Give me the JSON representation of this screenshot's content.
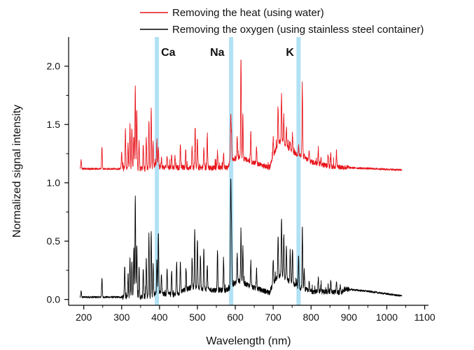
{
  "chart_data": {
    "type": "line",
    "title": "",
    "xlabel": "Wavelength (nm)",
    "ylabel": "Normalized signal intensity",
    "xlim": [
      160,
      1110
    ],
    "ylim": [
      -0.05,
      2.25
    ],
    "xticks": [
      200,
      300,
      400,
      500,
      600,
      700,
      800,
      900,
      1000,
      1100
    ],
    "xtick_labels": [
      "200",
      "300",
      "400",
      "500",
      "600",
      "700",
      "800",
      "900",
      "1000",
      "1100"
    ],
    "yticks": [
      0.0,
      0.5,
      1.0,
      1.5,
      2.0
    ],
    "ytick_labels": [
      "0.0",
      "0.5",
      "1.0",
      "1.5",
      "2.0"
    ],
    "grid": false,
    "legend_position": "top",
    "x_range": [
      190,
      1040
    ],
    "element_lines": [
      {
        "label": "Ca",
        "x": 393
      },
      {
        "label": "Na",
        "x": 589
      },
      {
        "label": "K",
        "x": 767
      }
    ],
    "series": [
      {
        "name": "Removing the heat (using water)",
        "color": "#e8141b",
        "baseline": [
          [
            190,
            1.12
          ],
          [
            380,
            1.12
          ],
          [
            392,
            1.17
          ],
          [
            398,
            1.14
          ],
          [
            420,
            1.13
          ],
          [
            580,
            1.13
          ],
          [
            588,
            1.19
          ],
          [
            610,
            1.22
          ],
          [
            650,
            1.17
          ],
          [
            690,
            1.13
          ],
          [
            710,
            1.32
          ],
          [
            720,
            1.36
          ],
          [
            740,
            1.3
          ],
          [
            760,
            1.25
          ],
          [
            780,
            1.22
          ],
          [
            800,
            1.18
          ],
          [
            850,
            1.14
          ],
          [
            900,
            1.13
          ],
          [
            1040,
            1.11
          ]
        ],
        "peaks": [
          [
            193,
            1.2
          ],
          [
            248,
            1.31
          ],
          [
            300,
            1.27
          ],
          [
            310,
            1.45
          ],
          [
            317,
            1.33
          ],
          [
            322,
            1.52
          ],
          [
            327,
            1.47
          ],
          [
            332,
            1.4
          ],
          [
            336,
            1.84
          ],
          [
            340,
            1.64
          ],
          [
            346,
            1.35
          ],
          [
            357,
            1.31
          ],
          [
            365,
            1.39
          ],
          [
            372,
            1.54
          ],
          [
            378,
            1.64
          ],
          [
            383,
            1.35
          ],
          [
            393,
            1.35
          ],
          [
            397,
            1.3
          ],
          [
            405,
            1.2
          ],
          [
            420,
            1.24
          ],
          [
            432,
            1.25
          ],
          [
            441,
            1.23
          ],
          [
            455,
            1.33
          ],
          [
            469,
            1.27
          ],
          [
            486,
            1.31
          ],
          [
            494,
            1.48
          ],
          [
            500,
            1.38
          ],
          [
            517,
            1.3
          ],
          [
            526,
            1.4
          ],
          [
            553,
            1.27
          ],
          [
            569,
            1.27
          ],
          [
            588,
            1.57
          ],
          [
            590,
            1.39
          ],
          [
            605,
            1.4
          ],
          [
            615,
            2.09
          ],
          [
            620,
            1.57
          ],
          [
            641,
            1.43
          ],
          [
            656,
            1.3
          ],
          [
            700,
            1.38
          ],
          [
            713,
            1.64
          ],
          [
            722,
            1.76
          ],
          [
            728,
            1.57
          ],
          [
            735,
            1.47
          ],
          [
            745,
            1.34
          ],
          [
            751,
            1.42
          ],
          [
            767,
            1.32
          ],
          [
            777,
            1.82
          ],
          [
            782,
            1.23
          ],
          [
            795,
            1.27
          ],
          [
            819,
            1.3
          ],
          [
            826,
            1.21
          ],
          [
            845,
            1.24
          ],
          [
            852,
            1.25
          ],
          [
            867,
            1.27
          ]
        ]
      },
      {
        "name": "Removing the oxygen (using stainless steel container)",
        "color": "#000000",
        "baseline": [
          [
            190,
            0.02
          ],
          [
            300,
            0.02
          ],
          [
            380,
            0.02
          ],
          [
            395,
            0.07
          ],
          [
            410,
            0.05
          ],
          [
            440,
            0.04
          ],
          [
            460,
            0.07
          ],
          [
            480,
            0.1
          ],
          [
            500,
            0.1
          ],
          [
            540,
            0.08
          ],
          [
            580,
            0.08
          ],
          [
            590,
            0.12
          ],
          [
            610,
            0.16
          ],
          [
            650,
            0.1
          ],
          [
            690,
            0.06
          ],
          [
            705,
            0.17
          ],
          [
            720,
            0.21
          ],
          [
            745,
            0.15
          ],
          [
            770,
            0.1
          ],
          [
            800,
            0.07
          ],
          [
            880,
            0.06
          ],
          [
            890,
            0.09
          ],
          [
            950,
            0.07
          ],
          [
            1040,
            0.03
          ]
        ],
        "peaks": [
          [
            193,
            0.07
          ],
          [
            248,
            0.18
          ],
          [
            308,
            0.28
          ],
          [
            317,
            0.22
          ],
          [
            322,
            0.37
          ],
          [
            327,
            0.33
          ],
          [
            332,
            0.44
          ],
          [
            336,
            0.9
          ],
          [
            340,
            0.48
          ],
          [
            346,
            0.26
          ],
          [
            357,
            0.27
          ],
          [
            365,
            0.35
          ],
          [
            372,
            0.57
          ],
          [
            378,
            0.6
          ],
          [
            383,
            0.3
          ],
          [
            393,
            0.34
          ],
          [
            397,
            0.57
          ],
          [
            405,
            0.22
          ],
          [
            420,
            0.28
          ],
          [
            432,
            0.24
          ],
          [
            445,
            0.31
          ],
          [
            455,
            0.32
          ],
          [
            470,
            0.27
          ],
          [
            486,
            0.36
          ],
          [
            493,
            0.57
          ],
          [
            500,
            0.52
          ],
          [
            508,
            0.38
          ],
          [
            517,
            0.43
          ],
          [
            526,
            0.3
          ],
          [
            553,
            0.43
          ],
          [
            569,
            0.35
          ],
          [
            588,
            0.99
          ],
          [
            590,
            0.6
          ],
          [
            605,
            0.39
          ],
          [
            615,
            0.58
          ],
          [
            620,
            0.45
          ],
          [
            641,
            0.33
          ],
          [
            656,
            0.25
          ],
          [
            700,
            0.35
          ],
          [
            713,
            0.55
          ],
          [
            722,
            0.69
          ],
          [
            728,
            0.54
          ],
          [
            735,
            0.45
          ],
          [
            745,
            0.42
          ],
          [
            751,
            0.44
          ],
          [
            767,
            0.36
          ],
          [
            777,
            0.6
          ],
          [
            782,
            0.25
          ],
          [
            795,
            0.15
          ],
          [
            819,
            0.19
          ],
          [
            826,
            0.13
          ],
          [
            845,
            0.12
          ],
          [
            852,
            0.16
          ],
          [
            867,
            0.15
          ],
          [
            877,
            0.11
          ]
        ]
      }
    ]
  }
}
